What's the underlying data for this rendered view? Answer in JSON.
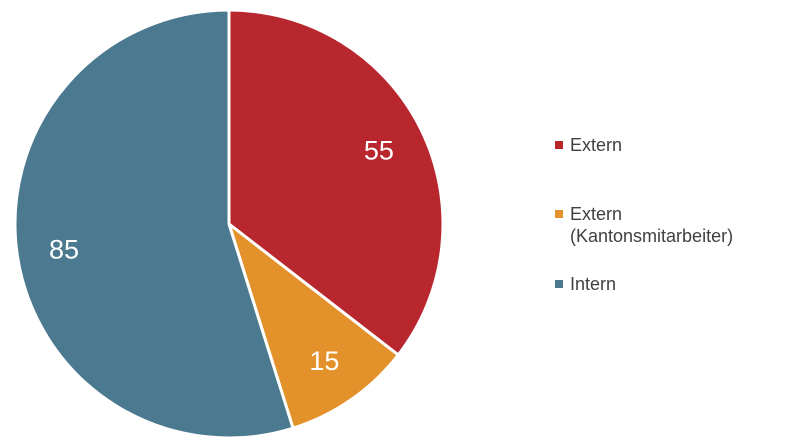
{
  "chart_data": {
    "type": "pie",
    "title": "",
    "start_angle_deg": 0,
    "direction": "clockwise",
    "legend_position": "right",
    "slices": [
      {
        "label": "Extern",
        "label_lines": [
          "Extern"
        ],
        "value": 55,
        "display_value": "55",
        "color": "#B8262E"
      },
      {
        "label": "Extern (Kantonsmitarbeiter)",
        "label_lines": [
          "Extern",
          "(Kantonsmitarbeiter)"
        ],
        "value": 15,
        "display_value": "15",
        "color": "#E3912A"
      },
      {
        "label": "Intern",
        "label_lines": [
          "Intern"
        ],
        "value": 85,
        "display_value": "85",
        "color": "#4A7990"
      }
    ]
  }
}
